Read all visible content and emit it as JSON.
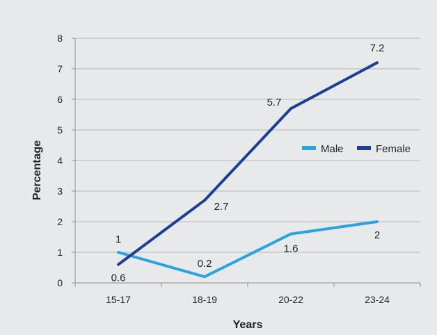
{
  "chart_data": {
    "type": "line",
    "categories": [
      "15-17",
      "18-19",
      "20-22",
      "23-24"
    ],
    "series": [
      {
        "name": "Male",
        "values": [
          1,
          0.2,
          1.6,
          2
        ],
        "labels": [
          "1",
          "0.2",
          "1.6",
          "2"
        ],
        "color": "#2ba3de"
      },
      {
        "name": "Female",
        "values": [
          0.6,
          2.7,
          5.7,
          7.2
        ],
        "labels": [
          "0.6",
          "2.7",
          "5.7",
          "7.2"
        ],
        "color": "#1c3f94"
      }
    ],
    "xlabel": "Years",
    "ylabel": "Percentage",
    "ylim": [
      0,
      8
    ],
    "yticks": [
      "0",
      "1",
      "2",
      "3",
      "4",
      "5",
      "6",
      "7",
      "8"
    ],
    "grid": true,
    "legend_position": "right"
  }
}
